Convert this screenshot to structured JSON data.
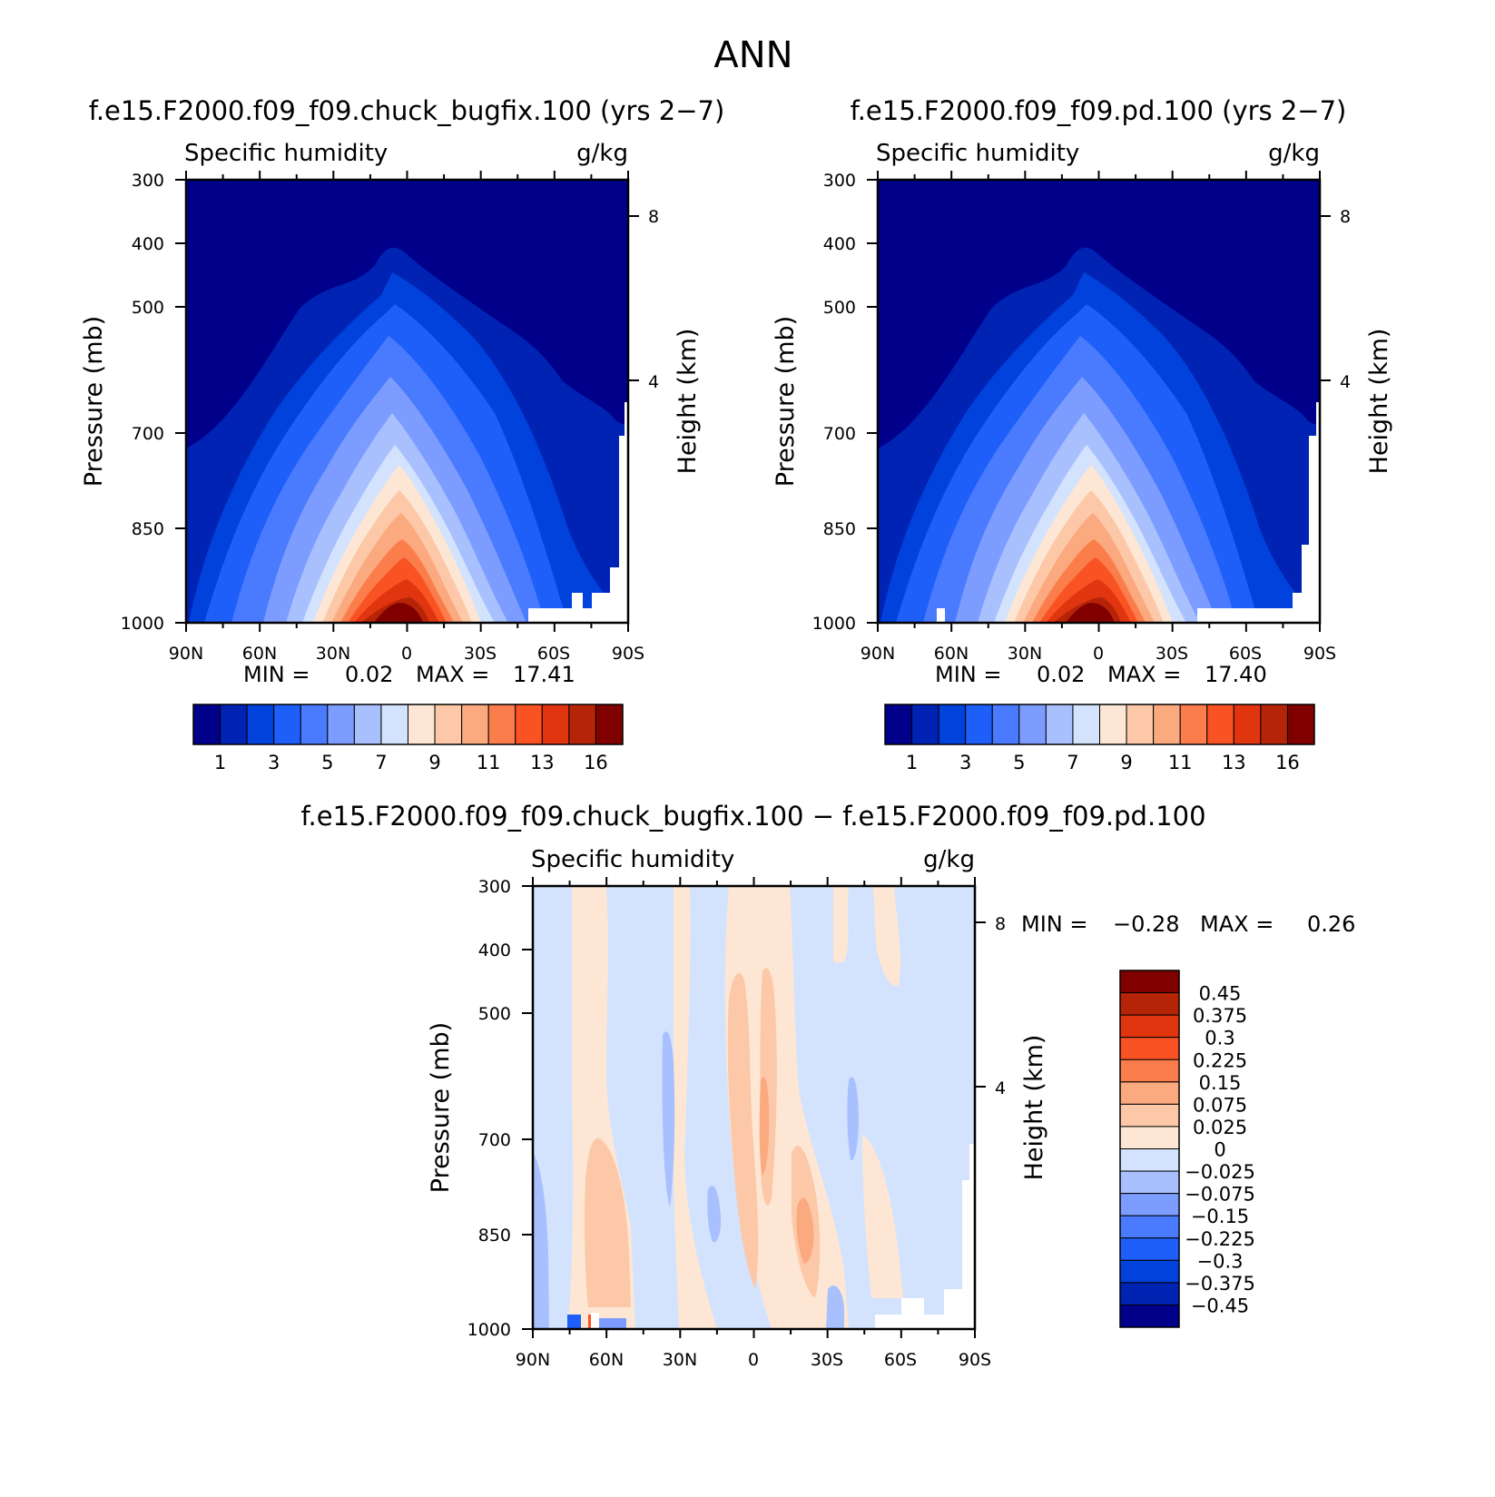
{
  "title": "ANN",
  "chart_data": [
    {
      "type": "heatmap",
      "title": "f.e15.F2000.f09_f09.chuck_bugfix.100 (yrs 2−7)",
      "variable": "Specific humidity",
      "units": "g/kg",
      "ylabel": "Pressure (mb)",
      "ylabel_right": "Height (km)",
      "x_ticks": [
        "90N",
        "60N",
        "30N",
        "0",
        "30S",
        "60S",
        "90S"
      ],
      "y_ticks": [
        "300",
        "400",
        "500",
        "700",
        "850",
        "1000"
      ],
      "right_ticks": [
        "8",
        "4"
      ],
      "min_label": "MIN =",
      "min_value": "0.02",
      "max_label": "MAX =",
      "max_value": "17.41",
      "levels": [
        1,
        2,
        3,
        4,
        5,
        6,
        7,
        8,
        9,
        10,
        11,
        12,
        13,
        14,
        16
      ],
      "colorbar_labels": [
        "1",
        "3",
        "5",
        "7",
        "9",
        "11",
        "13",
        "16"
      ],
      "colors": [
        "#00008b",
        "#0023b4",
        "#0042db",
        "#1d5ff8",
        "#4a7bff",
        "#7c9dff",
        "#a9c0ff",
        "#d3e3fd",
        "#fde7d4",
        "#fcc8a8",
        "#fba97e",
        "#fb7d4c",
        "#f95223",
        "#e0350f",
        "#b62408",
        "#800000"
      ]
    },
    {
      "type": "heatmap",
      "title": "f.e15.F2000.f09_f09.pd.100 (yrs 2−7)",
      "variable": "Specific humidity",
      "units": "g/kg",
      "ylabel": "Pressure (mb)",
      "ylabel_right": "Height (km)",
      "x_ticks": [
        "90N",
        "60N",
        "30N",
        "0",
        "30S",
        "60S",
        "90S"
      ],
      "y_ticks": [
        "300",
        "400",
        "500",
        "700",
        "850",
        "1000"
      ],
      "right_ticks": [
        "8",
        "4"
      ],
      "min_label": "MIN =",
      "min_value": "0.02",
      "max_label": "MAX =",
      "max_value": "17.40",
      "levels": [
        1,
        2,
        3,
        4,
        5,
        6,
        7,
        8,
        9,
        10,
        11,
        12,
        13,
        14,
        16
      ],
      "colorbar_labels": [
        "1",
        "3",
        "5",
        "7",
        "9",
        "11",
        "13",
        "16"
      ],
      "colors": [
        "#00008b",
        "#0023b4",
        "#0042db",
        "#1d5ff8",
        "#4a7bff",
        "#7c9dff",
        "#a9c0ff",
        "#d3e3fd",
        "#fde7d4",
        "#fcc8a8",
        "#fba97e",
        "#fb7d4c",
        "#f95223",
        "#e0350f",
        "#b62408",
        "#800000"
      ]
    },
    {
      "type": "heatmap",
      "title": "f.e15.F2000.f09_f09.chuck_bugfix.100 − f.e15.F2000.f09_f09.pd.100",
      "variable": "Specific humidity",
      "units": "g/kg",
      "ylabel": "Pressure (mb)",
      "ylabel_right": "Height (km)",
      "x_ticks": [
        "90N",
        "60N",
        "30N",
        "0",
        "30S",
        "60S",
        "90S"
      ],
      "y_ticks": [
        "300",
        "400",
        "500",
        "700",
        "850",
        "1000"
      ],
      "right_ticks": [
        "8",
        "4"
      ],
      "min_label": "MIN =",
      "min_value": "−0.28",
      "max_label": "MAX =",
      "max_value": "0.26",
      "colorbar_labels": [
        "0.45",
        "0.375",
        "0.3",
        "0.225",
        "0.15",
        "0.075",
        "0.025",
        "0",
        "−0.025",
        "−0.075",
        "−0.15",
        "−0.225",
        "−0.3",
        "−0.375",
        "−0.45"
      ],
      "colors": [
        "#800000",
        "#b62408",
        "#e0350f",
        "#f95223",
        "#fb7d4c",
        "#fba97e",
        "#fcc8a8",
        "#fde7d4",
        "#d3e3fd",
        "#a9c0ff",
        "#7c9dff",
        "#4a7bff",
        "#1d5ff8",
        "#0042db",
        "#0023b4",
        "#00008b"
      ]
    }
  ]
}
